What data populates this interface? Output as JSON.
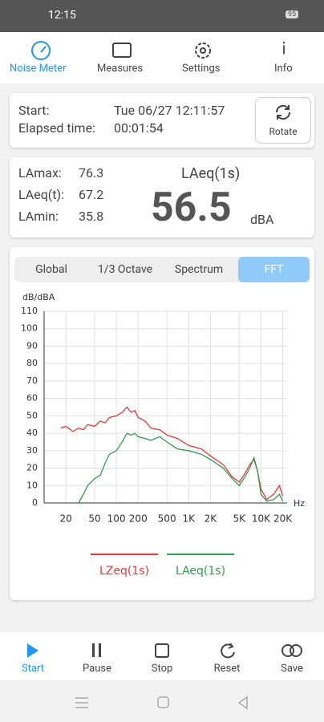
{
  "status_bar": {
    "time": "12:15",
    "battery": "95"
  },
  "tabs": [
    {
      "label": "Noise Meter",
      "active": true
    },
    {
      "label": "Measures"
    },
    {
      "label": "Settings"
    },
    {
      "label": "Info"
    }
  ],
  "session": {
    "start_label": "Start:",
    "start_value": "Tue 06/27 12:11:57",
    "elapsed_label": "Elapsed time:",
    "elapsed_value": "00:01:54",
    "rotate_button": "Rotate"
  },
  "levels": {
    "stats": [
      {
        "label": "LAmax:",
        "value": "76.3"
      },
      {
        "label": "LAeq(t):",
        "value": "67.2"
      },
      {
        "label": "LAmin:",
        "value": "35.8"
      }
    ],
    "main_label": "LAeq(1s)",
    "main_value": "56.5",
    "main_unit": "dBA"
  },
  "segments": [
    {
      "label": "Global"
    },
    {
      "label": "1/3 Octave"
    },
    {
      "label": "Spectrum"
    },
    {
      "label": "FFT",
      "active": true
    }
  ],
  "chart_data": {
    "type": "line",
    "y_label": "dB/dBA",
    "x_label": "Hz",
    "log_x": true,
    "grid": true,
    "x": [
      17,
      20,
      25,
      30,
      35,
      40,
      50,
      60,
      70,
      80,
      100,
      120,
      140,
      160,
      180,
      200,
      250,
      300,
      400,
      500,
      700,
      1000,
      1500,
      2000,
      3000,
      4000,
      5000,
      6000,
      7000,
      8000,
      9000,
      10000,
      12000,
      15000,
      18000,
      20000
    ],
    "series": [
      {
        "name": "LZeq(1s)",
        "color": "#e53935",
        "values": [
          43,
          44,
          41,
          43,
          42,
          45,
          44,
          47,
          46,
          49,
          50,
          52,
          55,
          52,
          53,
          49,
          47,
          43,
          42,
          39,
          37,
          33,
          31,
          27,
          22,
          15,
          12,
          17,
          22,
          25,
          18,
          8,
          2,
          5,
          10,
          4
        ]
      },
      {
        "name": "LAeq(1s)",
        "color": "#2e9e4f",
        "values": [
          null,
          null,
          null,
          0,
          5,
          10,
          14,
          16,
          23,
          28,
          30,
          35,
          40,
          39,
          40,
          38,
          37,
          36,
          38,
          35,
          31,
          30,
          28,
          25,
          20,
          14,
          10,
          15,
          20,
          26,
          18,
          5,
          1,
          2,
          5,
          1
        ]
      }
    ],
    "xlim": [
      10,
      23000
    ],
    "xticks": [
      20,
      50,
      100,
      200,
      500,
      {
        "value": 1000,
        "label": "1K"
      },
      {
        "value": 2000,
        "label": "2K"
      },
      {
        "value": 5000,
        "label": "5K"
      },
      {
        "value": 10000,
        "label": "10K"
      },
      {
        "value": 20000,
        "label": "20K"
      }
    ],
    "ylim": [
      0,
      110
    ],
    "yticks": [
      0,
      10,
      20,
      30,
      40,
      50,
      60,
      70,
      80,
      90,
      100,
      110
    ]
  },
  "controls": [
    {
      "label": "Start",
      "active": true
    },
    {
      "label": "Pause"
    },
    {
      "label": "Stop"
    },
    {
      "label": "Reset"
    },
    {
      "label": "Save"
    }
  ]
}
